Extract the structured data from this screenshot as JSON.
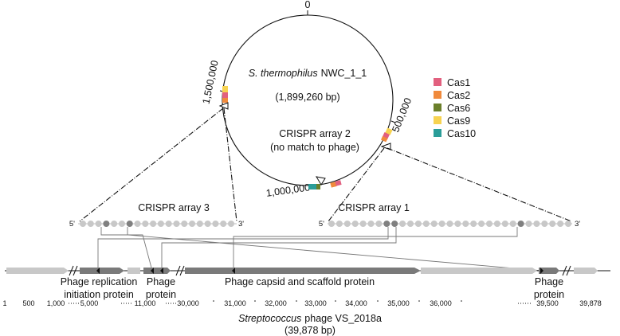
{
  "genome": {
    "name_italic": "S. thermophilus",
    "name_rest": "NWC_1_1",
    "length": "(1,899,260 bp)",
    "ticks": {
      "top": "0",
      "right": "500,000",
      "bottom": "1,000,000",
      "left": "1,500,000"
    }
  },
  "legend": {
    "items": [
      {
        "label": "Cas1",
        "color": "#e2607f"
      },
      {
        "label": "Cas2",
        "color": "#f08a3c"
      },
      {
        "label": "Cas6",
        "color": "#6b7f2a"
      },
      {
        "label": "Cas9",
        "color": "#f7d351"
      },
      {
        "label": "Cas10",
        "color": "#2a9d99"
      }
    ]
  },
  "arrays": {
    "array2_line1": "CRISPR array 2",
    "array2_line2": "(no match to phage)",
    "array3": "CRISPR array 3",
    "array1": "CRISPR array 1",
    "five_prime": "5'",
    "three_prime": "3'"
  },
  "phage": {
    "genes": {
      "replication_line1": "Phage replication",
      "replication_line2": "initiation protein",
      "protein_a_line1": "Phage",
      "protein_a_line2": "protein",
      "capsid": "Phage capsid and scaffold protein",
      "protein_b_line1": "Phage",
      "protein_b_line2": "protein"
    },
    "axis_labels": [
      "1",
      "500",
      "1,000",
      "5,000",
      "11,000",
      "30,000",
      "31,000",
      "32,000",
      "33,000",
      "34,000",
      "35,000",
      "36,000",
      "39,500",
      "39,878"
    ],
    "name_italic": "Streptococcus",
    "name_rest": "phage VS_2018a",
    "length": "(39,878 bp)"
  }
}
